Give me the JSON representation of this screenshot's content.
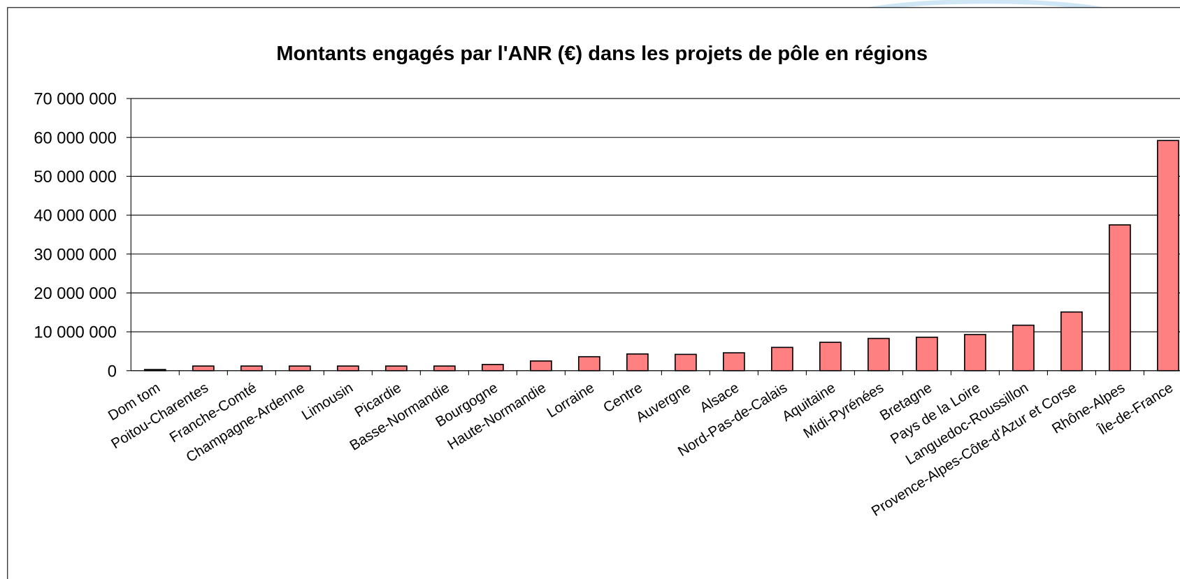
{
  "chart_data": {
    "type": "bar",
    "title": "Montants engagés par l'ANR (€) dans les projets de pôle en régions",
    "categories": [
      "Dom tom",
      "Poitou-Charentes",
      "Franche-Comté",
      "Champagne-Ardenne",
      "Limousin",
      "Picardie",
      "Basse-Normandie",
      "Bourgogne",
      "Haute-Normandie",
      "Lorraine",
      "Centre",
      "Auvergne",
      "Alsace",
      "Nord-Pas-de-Calais",
      "Aquitaine",
      "Midi-Pyrénées",
      "Bretagne",
      "Pays de la Loire",
      "Languedoc-Roussillon",
      "Provence-Alpes-Côte-d'Azur et Corse",
      "Rhône-Alpes",
      "Île-de-France"
    ],
    "values": [
      300000,
      1200000,
      1200000,
      1200000,
      1200000,
      1200000,
      1200000,
      1600000,
      2500000,
      3600000,
      4300000,
      4200000,
      4600000,
      6000000,
      7300000,
      8300000,
      8600000,
      9300000,
      11700000,
      15100000,
      37500000,
      59200000
    ],
    "color": "#ff8080",
    "ylim": [
      0,
      70000000
    ],
    "yticks": [
      {
        "value": 0,
        "label": "0"
      },
      {
        "value": 10000000,
        "label": "10 000 000"
      },
      {
        "value": 20000000,
        "label": "20 000 000"
      },
      {
        "value": 30000000,
        "label": "30 000 000"
      },
      {
        "value": 40000000,
        "label": "40 000 000"
      },
      {
        "value": 50000000,
        "label": "50 000 000"
      },
      {
        "value": 60000000,
        "label": "60 000 000"
      },
      {
        "value": 70000000,
        "label": "70 000 000"
      }
    ],
    "grid": true
  }
}
